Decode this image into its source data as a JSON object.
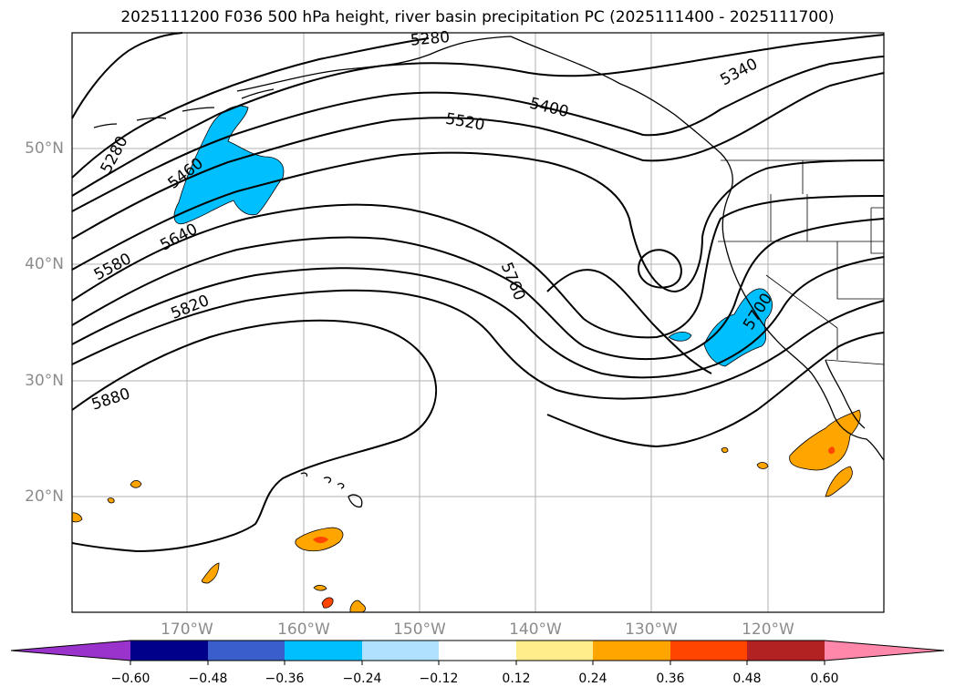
{
  "title": "2025111200 F036 500 hPa height, river basin precipitation PC (2025111400 - 2025111700)",
  "map": {
    "lat_labels": [
      "50°N",
      "40°N",
      "30°N",
      "20°N"
    ],
    "lon_labels": [
      "170°W",
      "160°W",
      "150°W",
      "140°W",
      "130°W",
      "120°W"
    ],
    "contour_labels": [
      "5280",
      "5280",
      "5340",
      "5400",
      "5460",
      "5520",
      "5580",
      "5640",
      "5760",
      "5820",
      "5880",
      "5700"
    ]
  },
  "colorbar": {
    "colors": [
      "#9933cc",
      "#00008b",
      "#3a5fcd",
      "#00bfff",
      "#b0e2ff",
      "#ffffff",
      "#ffec8b",
      "#ffa500",
      "#ff4500",
      "#b22222",
      "#ff88aa",
      "#ff88aa"
    ],
    "tick_labels": [
      "−0.60",
      "−0.48",
      "−0.36",
      "−0.24",
      "−0.12",
      "0.12",
      "0.24",
      "0.36",
      "0.48",
      "0.60"
    ]
  }
}
